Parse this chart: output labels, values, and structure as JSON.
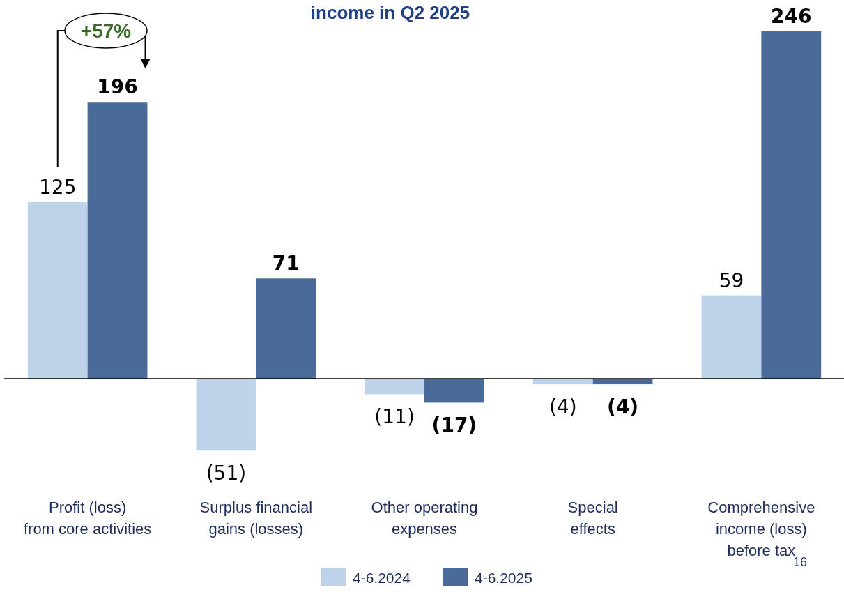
{
  "chart_data": {
    "type": "bar",
    "title": "income in Q2 2025",
    "categories": [
      "Profit (loss)\nfrom core activities",
      "Surplus financial\ngains (losses)",
      "Other operating\nexpenses",
      "Special\neffects",
      "Comprehensive\nincome (loss)\nbefore tax"
    ],
    "series": [
      {
        "name": "4-6.2024",
        "color": "#bdd3ea",
        "values": [
          125,
          -51,
          -11,
          -4,
          59
        ],
        "value_labels": [
          "125",
          "(51)",
          "(11)",
          "(4)",
          "59"
        ]
      },
      {
        "name": "4-6.2025",
        "color": "#4a6b9a",
        "values": [
          196,
          71,
          -17,
          -4,
          246
        ],
        "value_labels": [
          "196",
          "71",
          "(17)",
          "(4)",
          "246"
        ]
      }
    ],
    "legend": "bottom",
    "annotations": [
      "+57%",
      "16"
    ]
  }
}
